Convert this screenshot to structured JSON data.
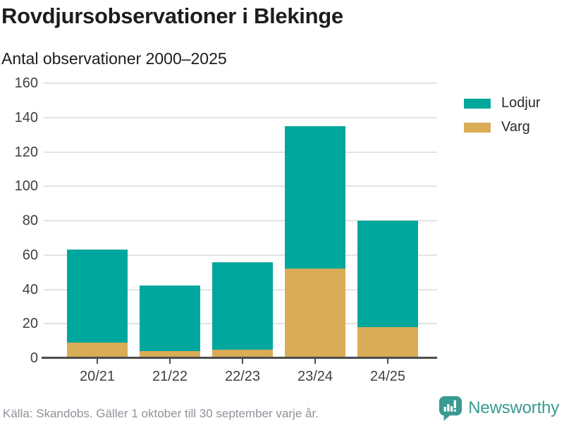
{
  "header": {
    "title": "Rovdjursobservationer i Blekinge",
    "subtitle": "Antal observationer 2000–2025"
  },
  "chart_data": {
    "type": "bar",
    "stacked": true,
    "title": "Rovdjursobservationer i Blekinge",
    "subtitle": "Antal observationer 2000–2025",
    "categories": [
      "20/21",
      "21/22",
      "22/23",
      "23/24",
      "24/25"
    ],
    "series": [
      {
        "name": "Lodjur",
        "color": "#00a79c",
        "values": [
          54,
          38,
          51,
          83,
          62
        ]
      },
      {
        "name": "Varg",
        "color": "#d9ac57",
        "values": [
          9,
          4,
          5,
          52,
          18
        ]
      }
    ],
    "stack_order_bottom_to_top": [
      "Varg",
      "Lodjur"
    ],
    "totals": [
      63,
      42,
      56,
      135,
      80
    ],
    "xlabel": "",
    "ylabel": "",
    "ylim": [
      0,
      160
    ],
    "yticks": [
      0,
      20,
      40,
      60,
      80,
      100,
      120,
      140,
      160
    ],
    "grid": true,
    "legend_position": "right"
  },
  "legend": {
    "items": [
      {
        "label": "Lodjur",
        "color": "#00a79c"
      },
      {
        "label": "Varg",
        "color": "#d9ac57"
      }
    ]
  },
  "footer": {
    "source": "Källa: Skandobs. Gäller 1 oktober till 30 september varje år.",
    "brand": "Newsworthy"
  },
  "colors": {
    "lodjur": "#00a79c",
    "varg": "#d9ac57",
    "brand": "#3a9a92",
    "axis": "#4d4d4d",
    "grid": "#e3e3e3",
    "title_text": "#1d1d1b",
    "tick_text": "#3f3f3f",
    "source_text": "#8f929a"
  }
}
